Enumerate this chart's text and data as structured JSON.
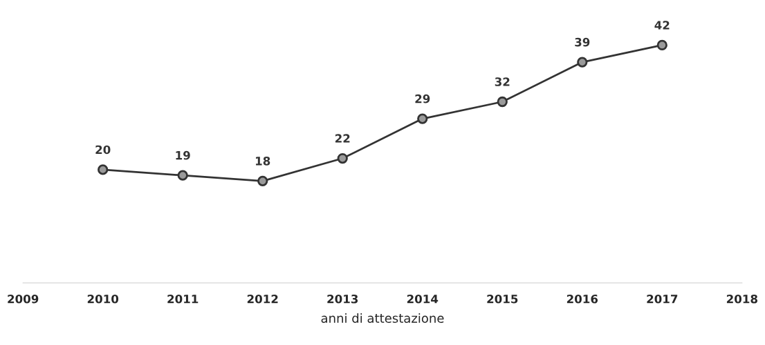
{
  "chart_data": {
    "type": "line",
    "xlabel": "anni di attestazione",
    "x": [
      2010,
      2011,
      2012,
      2013,
      2014,
      2015,
      2016,
      2017
    ],
    "series": [
      {
        "color": "#333333",
        "values": [
          20,
          19,
          18,
          22,
          29,
          32,
          39,
          42
        ]
      }
    ],
    "xlim": [
      2009,
      2018
    ],
    "xticks": [
      2009,
      2010,
      2011,
      2012,
      2013,
      2014,
      2015,
      2016,
      2017,
      2018
    ],
    "data_labels": true,
    "marker": "circle",
    "line_style": "solid",
    "grid": false,
    "tick_labels": "x",
    "legend": false
  }
}
